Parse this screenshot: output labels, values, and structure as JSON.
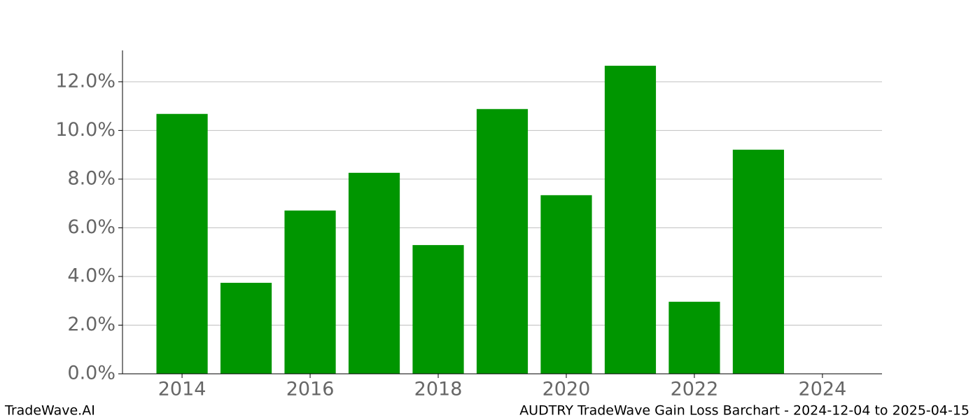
{
  "chart_data": {
    "type": "bar",
    "x": [
      2014,
      2015,
      2016,
      2017,
      2018,
      2019,
      2020,
      2021,
      2022,
      2023
    ],
    "values": [
      10.68,
      3.74,
      6.71,
      8.26,
      5.29,
      10.88,
      7.34,
      12.66,
      2.96,
      9.21
    ],
    "color": "#009600",
    "bar_width": 0.8,
    "xlim": [
      2013.07,
      2024.93
    ],
    "xticks": [
      2014,
      2016,
      2018,
      2020,
      2022,
      2024
    ],
    "ylim": [
      0,
      13.29
    ],
    "yticks": [
      {
        "value": 0,
        "label": "0.0%"
      },
      {
        "value": 2,
        "label": "2.0%"
      },
      {
        "value": 4,
        "label": "4.0%"
      },
      {
        "value": 6,
        "label": "6.0%"
      },
      {
        "value": 8,
        "label": "8.0%"
      },
      {
        "value": 10,
        "label": "10.0%"
      },
      {
        "value": 12,
        "label": "12.0%"
      }
    ],
    "grid": true
  },
  "footer": {
    "left": "TradeWave.AI",
    "right": "AUDTRY TradeWave Gain Loss Barchart - 2024-12-04 to 2025-04-15"
  }
}
